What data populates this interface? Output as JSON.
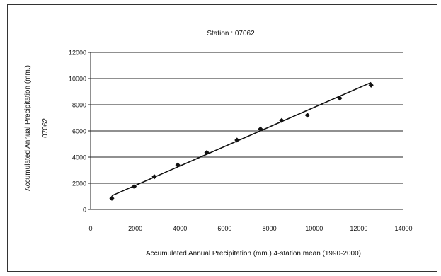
{
  "chart_data": {
    "type": "scatter",
    "title": "Station : 07062",
    "xlabel": "Accumulated Annual Precipitation (mm.) 4-station mean (1990-2000)",
    "ylabel_line1": "Accumulated Annual Precipitation (mm.)",
    "ylabel_line2": "07062",
    "xlim": [
      0,
      14000
    ],
    "ylim": [
      0,
      12000
    ],
    "xticks": [
      0,
      2000,
      4000,
      6000,
      8000,
      10000,
      12000,
      14000
    ],
    "yticks": [
      0,
      2000,
      4000,
      6000,
      8000,
      10000,
      12000
    ],
    "grid": "horizontal",
    "points": [
      {
        "x": 950,
        "y": 850
      },
      {
        "x": 1950,
        "y": 1750
      },
      {
        "x": 2850,
        "y": 2500
      },
      {
        "x": 3900,
        "y": 3400
      },
      {
        "x": 5200,
        "y": 4350
      },
      {
        "x": 6550,
        "y": 5300
      },
      {
        "x": 7600,
        "y": 6150
      },
      {
        "x": 8550,
        "y": 6800
      },
      {
        "x": 9700,
        "y": 7200
      },
      {
        "x": 11150,
        "y": 8500
      },
      {
        "x": 12550,
        "y": 9500
      }
    ],
    "trendline": {
      "x": [
        950,
        12550
      ],
      "y": [
        1050,
        9700
      ]
    },
    "marker_color": "#111111",
    "line_color": "#111111"
  }
}
